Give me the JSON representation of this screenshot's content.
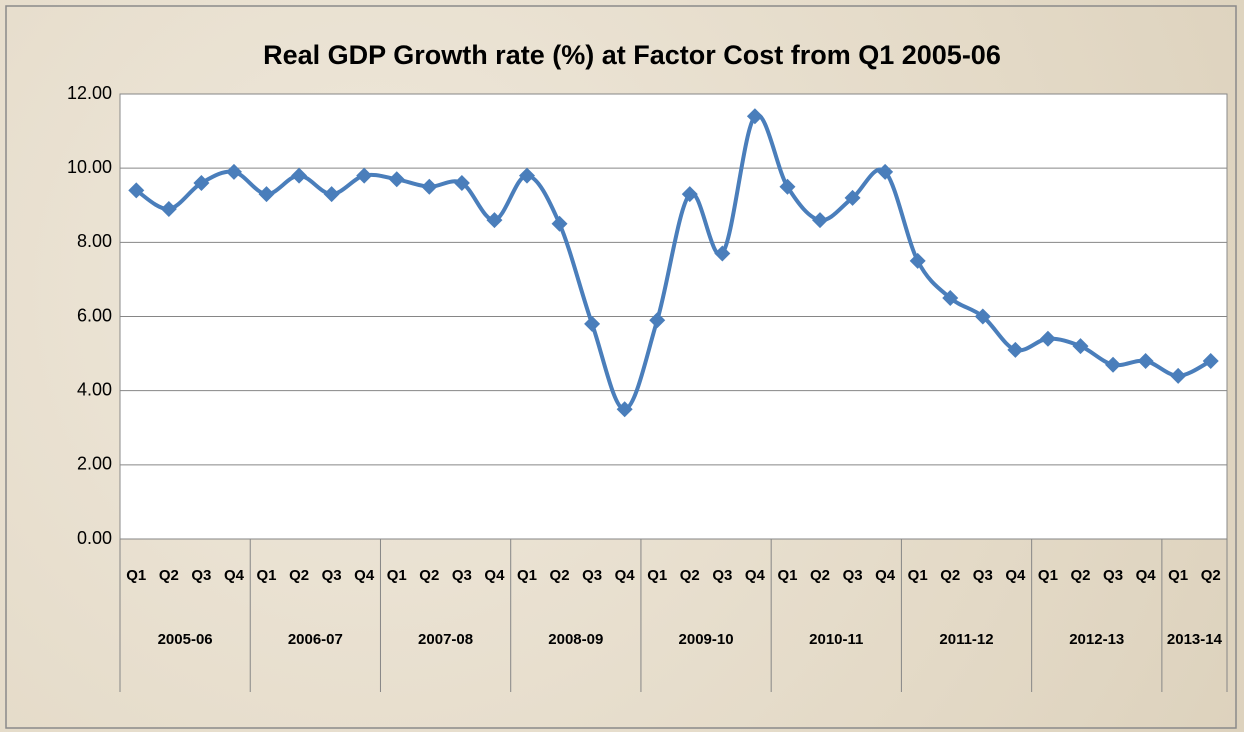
{
  "chart_data": {
    "type": "line",
    "title": "Real GDP Growth rate (%) at Factor Cost from Q1 2005-06",
    "categories": [
      "Q1",
      "Q2",
      "Q3",
      "Q4",
      "Q1",
      "Q2",
      "Q3",
      "Q4",
      "Q1",
      "Q2",
      "Q3",
      "Q4",
      "Q1",
      "Q2",
      "Q3",
      "Q4",
      "Q1",
      "Q2",
      "Q3",
      "Q4",
      "Q1",
      "Q2",
      "Q3",
      "Q4",
      "Q1",
      "Q2",
      "Q3",
      "Q4",
      "Q1",
      "Q2",
      "Q3",
      "Q4",
      "Q1",
      "Q2"
    ],
    "groups": [
      {
        "name": "2005-06",
        "count": 4
      },
      {
        "name": "2006-07",
        "count": 4
      },
      {
        "name": "2007-08",
        "count": 4
      },
      {
        "name": "2008-09",
        "count": 4
      },
      {
        "name": "2009-10",
        "count": 4
      },
      {
        "name": "2010-11",
        "count": 4
      },
      {
        "name": "2011-12",
        "count": 4
      },
      {
        "name": "2012-13",
        "count": 4
      },
      {
        "name": "2013-14",
        "count": 2
      }
    ],
    "series": [
      {
        "name": "Real GDP Growth rate",
        "color": "#4a7ebb",
        "values": [
          9.4,
          8.9,
          9.6,
          9.9,
          9.3,
          9.8,
          9.3,
          9.8,
          9.7,
          9.5,
          9.6,
          8.6,
          9.8,
          8.5,
          5.8,
          3.5,
          5.9,
          9.3,
          7.7,
          11.4,
          9.5,
          8.6,
          9.2,
          9.9,
          7.5,
          6.5,
          6.0,
          5.1,
          5.4,
          5.2,
          4.7,
          4.8,
          4.4,
          4.8
        ]
      }
    ],
    "ylim": [
      0,
      12
    ],
    "yticks": [
      {
        "value": 0,
        "label": "0.00"
      },
      {
        "value": 2,
        "label": "2.00"
      },
      {
        "value": 4,
        "label": "4.00"
      },
      {
        "value": 6,
        "label": "6.00"
      },
      {
        "value": 8,
        "label": "8.00"
      },
      {
        "value": 10,
        "label": "10.00"
      },
      {
        "value": 12,
        "label": "12.00"
      }
    ],
    "grid": true,
    "smooth": true
  }
}
